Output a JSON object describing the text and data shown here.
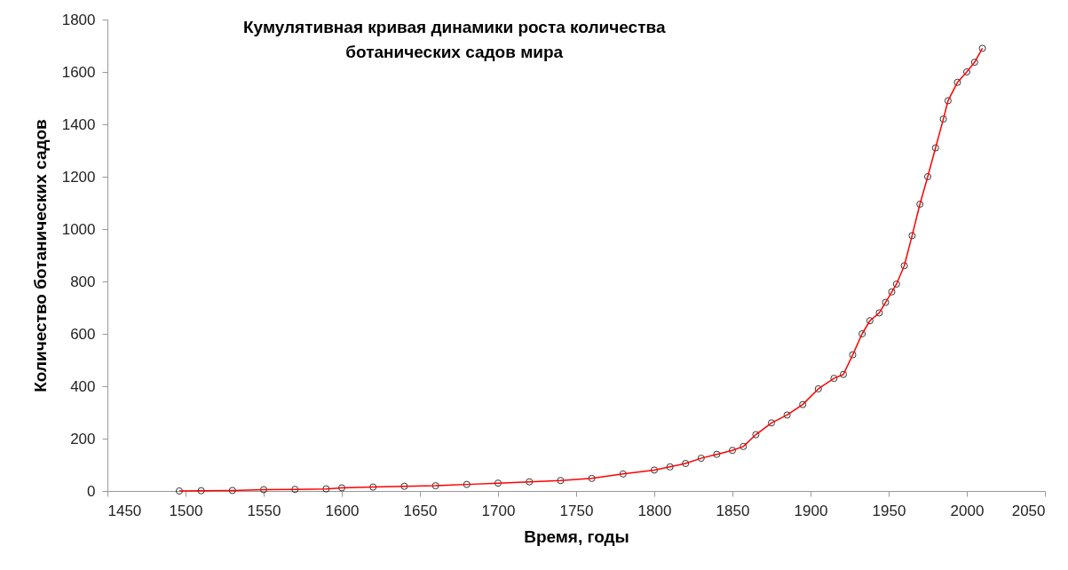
{
  "chart_data": {
    "type": "scatter",
    "title": "Кумулятивная кривая динамики роста количества\nботанических садов мира",
    "xlabel": "Время, годы",
    "ylabel": "Количество ботанических садов",
    "x": [
      1496,
      1510,
      1530,
      1550,
      1570,
      1590,
      1600,
      1620,
      1640,
      1660,
      1680,
      1700,
      1720,
      1740,
      1760,
      1780,
      1800,
      1810,
      1820,
      1830,
      1840,
      1850,
      1857,
      1865,
      1875,
      1885,
      1895,
      1905,
      1915,
      1921,
      1927,
      1933,
      1938,
      1944,
      1948,
      1952,
      1955,
      1960,
      1965,
      1970,
      1975,
      1980,
      1985,
      1988,
      1994,
      2000,
      2005,
      2010
    ],
    "series": [
      {
        "color": "#000000",
        "marker": "circle",
        "values": [
          0,
          1,
          2,
          5,
          6,
          8,
          12,
          15,
          18,
          20,
          25,
          30,
          35,
          40,
          48,
          65,
          80,
          92,
          105,
          125,
          140,
          155,
          170,
          215,
          260,
          290,
          330,
          390,
          430,
          445,
          520,
          600,
          650,
          680,
          720,
          760,
          790,
          860,
          975,
          1095,
          1200,
          1310,
          1420,
          1490,
          1560,
          1600,
          1637,
          1690
        ]
      },
      {
        "type": "line",
        "color": "#ff0000",
        "marker": "none",
        "values": [
          0,
          1,
          2,
          5,
          6,
          8,
          12,
          15,
          18,
          20,
          25,
          30,
          35,
          40,
          48,
          65,
          80,
          92,
          105,
          125,
          140,
          155,
          170,
          215,
          260,
          290,
          330,
          390,
          430,
          445,
          520,
          600,
          650,
          680,
          720,
          760,
          790,
          860,
          975,
          1095,
          1200,
          1310,
          1420,
          1490,
          1560,
          1600,
          1637,
          1690
        ]
      }
    ],
    "xlim": [
      1450,
      2050
    ],
    "xticks": [
      1450,
      1500,
      1550,
      1600,
      1650,
      1700,
      1750,
      1800,
      1850,
      1900,
      1950,
      2000,
      2050
    ],
    "ylim": [
      0,
      1800
    ],
    "yticks": [
      0,
      200,
      400,
      600,
      800,
      1000,
      1200,
      1400,
      1600,
      1800
    ],
    "grid": false
  }
}
